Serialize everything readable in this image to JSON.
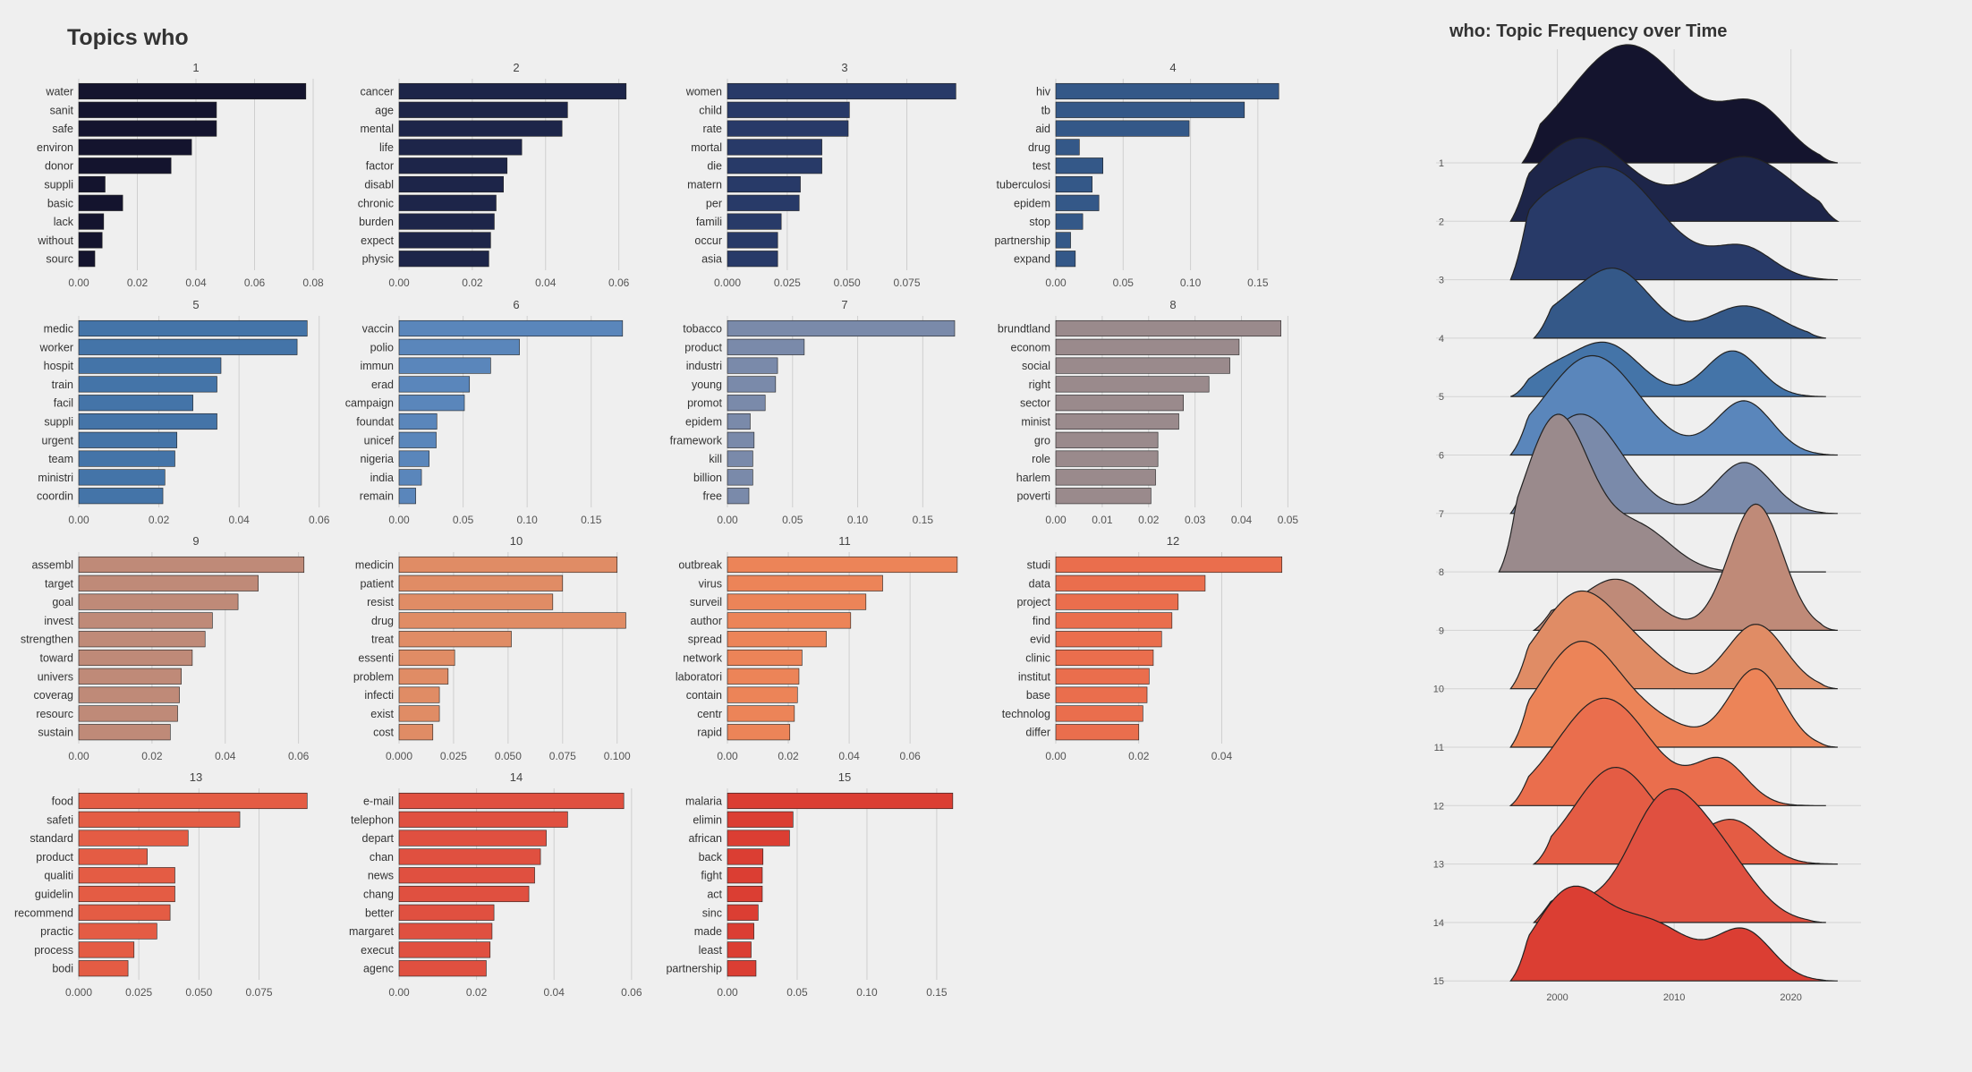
{
  "page": {
    "title": "Topics who",
    "ridge_title": "who: Topic Frequency over Time"
  },
  "chart_data": [
    {
      "type": "bar",
      "orientation": "horizontal",
      "grid": "4x4 facets (15 used)",
      "title": "Topics who",
      "facets": [
        {
          "title": "1",
          "color": "#14142e",
          "ticks": [
            0,
            0.02,
            0.04,
            0.06,
            0.08
          ],
          "tick_labels": [
            "0.00",
            "0.02",
            "0.04",
            "0.06",
            "0.08"
          ],
          "xlim": [
            0,
            0.08
          ],
          "terms": [
            "water",
            "sanit",
            "safe",
            "environ",
            "donor",
            "suppli",
            "basic",
            "lack",
            "without",
            "sourc"
          ],
          "values": [
            0.0775,
            0.047,
            0.047,
            0.0385,
            0.0315,
            0.009,
            0.015,
            0.0085,
            0.008,
            0.0055
          ]
        },
        {
          "title": "2",
          "color": "#1d2549",
          "ticks": [
            0,
            0.02,
            0.04,
            0.06
          ],
          "tick_labels": [
            "0.00",
            "0.02",
            "0.04",
            "0.06"
          ],
          "xlim": [
            0,
            0.064
          ],
          "terms": [
            "cancer",
            "age",
            "mental",
            "life",
            "factor",
            "disabl",
            "chronic",
            "burden",
            "expect",
            "physic"
          ],
          "values": [
            0.062,
            0.046,
            0.0445,
            0.0335,
            0.0295,
            0.0285,
            0.0265,
            0.026,
            0.025,
            0.0245
          ]
        },
        {
          "title": "3",
          "color": "#283a68",
          "ticks": [
            0,
            0.025,
            0.05,
            0.075
          ],
          "tick_labels": [
            "0.000",
            "0.025",
            "0.050",
            "0.075"
          ],
          "xlim": [
            0,
            0.098
          ],
          "terms": [
            "women",
            "child",
            "rate",
            "mortal",
            "die",
            "matern",
            "per",
            "famili",
            "occur",
            "asia"
          ],
          "values": [
            0.0955,
            0.051,
            0.0505,
            0.0395,
            0.0395,
            0.0305,
            0.03,
            0.0225,
            0.021,
            0.021
          ]
        },
        {
          "title": "4",
          "color": "#345888",
          "ticks": [
            0,
            0.05,
            0.1,
            0.15
          ],
          "tick_labels": [
            "0.00",
            "0.05",
            "0.10",
            "0.15"
          ],
          "xlim": [
            0,
            0.174
          ],
          "terms": [
            "hiv",
            "tb",
            "aid",
            "drug",
            "test",
            "tuberculosi",
            "epidem",
            "stop",
            "partnership",
            "expand"
          ],
          "values": [
            0.1655,
            0.14,
            0.099,
            0.0175,
            0.035,
            0.027,
            0.032,
            0.02,
            0.011,
            0.0145
          ]
        },
        {
          "title": "5",
          "color": "#4474a8",
          "ticks": [
            0,
            0.02,
            0.04,
            0.06
          ],
          "tick_labels": [
            "0.00",
            "0.02",
            "0.04",
            "0.06"
          ],
          "xlim": [
            0,
            0.0585
          ],
          "terms": [
            "medic",
            "worker",
            "hospit",
            "train",
            "facil",
            "suppli",
            "urgent",
            "team",
            "ministri",
            "coordin"
          ],
          "values": [
            0.057,
            0.0545,
            0.0355,
            0.0345,
            0.0285,
            0.0345,
            0.0245,
            0.024,
            0.0215,
            0.021
          ]
        },
        {
          "title": "6",
          "color": "#5a86bb",
          "ticks": [
            0,
            0.05,
            0.1,
            0.15
          ],
          "tick_labels": [
            "0.00",
            "0.05",
            "0.10",
            "0.15"
          ],
          "xlim": [
            0,
            0.183
          ],
          "terms": [
            "vaccin",
            "polio",
            "immun",
            "erad",
            "campaign",
            "foundat",
            "unicef",
            "nigeria",
            "india",
            "remain"
          ],
          "values": [
            0.1745,
            0.094,
            0.0715,
            0.055,
            0.051,
            0.0295,
            0.029,
            0.0235,
            0.0175,
            0.013
          ]
        },
        {
          "title": "7",
          "color": "#7a8aaa",
          "ticks": [
            0,
            0.05,
            0.1,
            0.15
          ],
          "tick_labels": [
            "0.00",
            "0.05",
            "0.10",
            "0.15"
          ],
          "xlim": [
            0,
            0.18
          ],
          "terms": [
            "tobacco",
            "product",
            "industri",
            "young",
            "promot",
            "epidem",
            "framework",
            "kill",
            "billion",
            "free"
          ],
          "values": [
            0.1745,
            0.059,
            0.0385,
            0.037,
            0.029,
            0.0175,
            0.0205,
            0.0195,
            0.0195,
            0.0165
          ]
        },
        {
          "title": "8",
          "color": "#9a8a8c",
          "ticks": [
            0,
            0.01,
            0.02,
            0.03,
            0.04,
            0.05
          ],
          "tick_labels": [
            "0.00",
            "0.01",
            "0.02",
            "0.03",
            "0.04",
            "0.05"
          ],
          "xlim": [
            0,
            0.0505
          ],
          "terms": [
            "brundtland",
            "econom",
            "social",
            "right",
            "sector",
            "minist",
            "gro",
            "role",
            "harlem",
            "poverti"
          ],
          "values": [
            0.0485,
            0.0395,
            0.0375,
            0.033,
            0.0275,
            0.0265,
            0.022,
            0.022,
            0.0215,
            0.0205
          ]
        },
        {
          "title": "9",
          "color": "#bf8a78",
          "ticks": [
            0,
            0.02,
            0.04,
            0.06
          ],
          "tick_labels": [
            "0.00",
            "0.02",
            "0.04",
            "0.06"
          ],
          "xlim": [
            0,
            0.064
          ],
          "terms": [
            "assembl",
            "target",
            "goal",
            "invest",
            "strengthen",
            "toward",
            "univers",
            "coverag",
            "resourc",
            "sustain"
          ],
          "values": [
            0.0615,
            0.049,
            0.0435,
            0.0365,
            0.0345,
            0.031,
            0.028,
            0.0275,
            0.027,
            0.025
          ]
        },
        {
          "title": "10",
          "color": "#e08c65",
          "ticks": [
            0,
            0.025,
            0.05,
            0.075,
            0.1
          ],
          "tick_labels": [
            "0.000",
            "0.025",
            "0.050",
            "0.075",
            "0.100"
          ],
          "xlim": [
            0,
            0.1075
          ],
          "terms": [
            "medicin",
            "patient",
            "resist",
            "drug",
            "treat",
            "essenti",
            "problem",
            "infecti",
            "exist",
            "cost"
          ],
          "values": [
            0.1,
            0.075,
            0.0705,
            0.104,
            0.0515,
            0.0255,
            0.0225,
            0.0185,
            0.0185,
            0.0155
          ]
        },
        {
          "title": "11",
          "color": "#ec8458",
          "ticks": [
            0,
            0.02,
            0.04,
            0.06
          ],
          "tick_labels": [
            "0.00",
            "0.02",
            "0.04",
            "0.06"
          ],
          "xlim": [
            0,
            0.077
          ],
          "terms": [
            "outbreak",
            "virus",
            "surveil",
            "author",
            "spread",
            "network",
            "laboratori",
            "contain",
            "centr",
            "rapid"
          ],
          "values": [
            0.0755,
            0.051,
            0.0455,
            0.0405,
            0.0325,
            0.0245,
            0.0235,
            0.023,
            0.022,
            0.0205
          ]
        },
        {
          "title": "12",
          "color": "#ea6e4d",
          "ticks": [
            0,
            0.02,
            0.04
          ],
          "tick_labels": [
            "0.00",
            "0.02",
            "0.04"
          ],
          "xlim": [
            0,
            0.0565
          ],
          "terms": [
            "studi",
            "data",
            "project",
            "find",
            "evid",
            "clinic",
            "institut",
            "base",
            "technolog",
            "differ"
          ],
          "values": [
            0.0545,
            0.036,
            0.0295,
            0.028,
            0.0255,
            0.0235,
            0.0225,
            0.022,
            0.021,
            0.02
          ]
        },
        {
          "title": "13",
          "color": "#e45c44",
          "ticks": [
            0,
            0.025,
            0.05,
            0.075
          ],
          "tick_labels": [
            "0.000",
            "0.025",
            "0.050",
            "0.075"
          ],
          "xlim": [
            0,
            0.0975
          ],
          "terms": [
            "food",
            "safeti",
            "standard",
            "product",
            "qualiti",
            "guidelin",
            "recommend",
            "practic",
            "process",
            "bodi"
          ],
          "values": [
            0.095,
            0.067,
            0.0455,
            0.0285,
            0.04,
            0.04,
            0.038,
            0.0325,
            0.023,
            0.0205
          ]
        },
        {
          "title": "14",
          "color": "#e05040",
          "ticks": [
            0,
            0.02,
            0.04,
            0.06
          ],
          "tick_labels": [
            "0.00",
            "0.02",
            "0.04",
            "0.06"
          ],
          "xlim": [
            0,
            0.0605
          ],
          "terms": [
            "e-mail",
            "telephon",
            "depart",
            "chan",
            "news",
            "chang",
            "better",
            "margaret",
            "execut",
            "agenc"
          ],
          "values": [
            0.058,
            0.0435,
            0.038,
            0.0365,
            0.035,
            0.0335,
            0.0245,
            0.024,
            0.0235,
            0.0225
          ]
        },
        {
          "title": "15",
          "color": "#db3e33",
          "ticks": [
            0,
            0.05,
            0.1,
            0.15
          ],
          "tick_labels": [
            "0.00",
            "0.05",
            "0.10",
            "0.15"
          ],
          "xlim": [
            0,
            0.168
          ],
          "terms": [
            "malaria",
            "elimin",
            "african",
            "back",
            "fight",
            "act",
            "sinc",
            "made",
            "least",
            "partnership"
          ],
          "values": [
            0.1615,
            0.047,
            0.0445,
            0.0255,
            0.025,
            0.025,
            0.022,
            0.019,
            0.017,
            0.0205
          ]
        }
      ]
    },
    {
      "type": "area",
      "subtype": "ridgeline",
      "title": "who: Topic Frequency over Time",
      "x_ticks": [
        2000,
        2010,
        2020
      ],
      "xlim": [
        1990,
        2026
      ],
      "y_labels": [
        "1",
        "2",
        "3",
        "4",
        "5",
        "6",
        "7",
        "8",
        "9",
        "10",
        "11",
        "12",
        "13",
        "14",
        "15"
      ],
      "grid": true,
      "series": [
        {
          "label": "1",
          "color": "#14142e",
          "range": [
            1997,
            2024
          ],
          "peaks": [
            [
              2006,
              2.2,
              5.0
            ],
            [
              2017,
              0.95,
              2.8
            ]
          ]
        },
        {
          "label": "2",
          "color": "#1d2549",
          "range": [
            1996,
            2024
          ],
          "peaks": [
            [
              2002,
              1.55,
              4.2
            ],
            [
              2016,
              1.2,
              4.2
            ]
          ]
        },
        {
          "label": "3",
          "color": "#283a68",
          "range": [
            1996,
            2024
          ],
          "peaks": [
            [
              2004,
              2.1,
              4.8
            ],
            [
              2016,
              0.55,
              2.5
            ],
            [
              1998,
              0.45,
              2.0
            ]
          ]
        },
        {
          "label": "4",
          "color": "#345888",
          "range": [
            1998,
            2023
          ],
          "peaks": [
            [
              2005,
              1.25,
              3.0
            ],
            [
              2016,
              0.6,
              3.0
            ],
            [
              2000,
              0.35,
              2.5
            ]
          ]
        },
        {
          "label": "5",
          "color": "#4474a8",
          "range": [
            1996,
            2023
          ],
          "peaks": [
            [
              2004,
              1.0,
              3.0
            ],
            [
              2015,
              0.85,
              2.3
            ],
            [
              1999,
              0.3,
              2.0
            ]
          ]
        },
        {
          "label": "6",
          "color": "#5a86bb",
          "range": [
            1996,
            2024
          ],
          "peaks": [
            [
              2003,
              1.85,
              4.0
            ],
            [
              2016,
              1.0,
              2.4
            ]
          ]
        },
        {
          "label": "7",
          "color": "#7a8aaa",
          "range": [
            1996,
            2024
          ],
          "peaks": [
            [
              2002,
              1.85,
              3.5
            ],
            [
              2016,
              0.95,
              2.4
            ]
          ]
        },
        {
          "label": "8",
          "color": "#9a8a8c",
          "range": [
            1995,
            2023
          ],
          "peaks": [
            [
              2000,
              2.9,
              2.8
            ],
            [
              2007,
              0.8,
              2.8
            ]
          ]
        },
        {
          "label": "9",
          "color": "#bf8a78",
          "range": [
            1998,
            2024
          ],
          "peaks": [
            [
              2005,
              0.95,
              3.0
            ],
            [
              2017,
              2.35,
              2.3
            ],
            [
              1999,
              0.2,
              2.0
            ]
          ]
        },
        {
          "label": "10",
          "color": "#e08c65",
          "range": [
            1996,
            2024
          ],
          "peaks": [
            [
              2002,
              1.8,
              3.5
            ],
            [
              2017,
              1.2,
              2.5
            ],
            [
              2008,
              0.35,
              2.5
            ]
          ]
        },
        {
          "label": "11",
          "color": "#ec8458",
          "range": [
            1996,
            2024
          ],
          "peaks": [
            [
              2002,
              1.95,
              3.5
            ],
            [
              2017,
              1.45,
              2.3
            ],
            [
              2009,
              0.35,
              3.0
            ]
          ]
        },
        {
          "label": "12",
          "color": "#ea6e4d",
          "range": [
            1996,
            2023
          ],
          "peaks": [
            [
              2004,
              2.0,
              4.0
            ],
            [
              2014,
              0.8,
              2.2
            ]
          ]
        },
        {
          "label": "13",
          "color": "#e45c44",
          "range": [
            1998,
            2024
          ],
          "peaks": [
            [
              2005,
              1.8,
              3.5
            ],
            [
              2015,
              0.8,
              2.5
            ]
          ]
        },
        {
          "label": "14",
          "color": "#e05040",
          "range": [
            1998,
            2023
          ],
          "peaks": [
            [
              2009,
              2.15,
              3.0
            ],
            [
              2014,
              1.1,
              3.0
            ],
            [
              2000,
              0.4,
              3.0
            ]
          ]
        },
        {
          "label": "15",
          "color": "#db3e33",
          "range": [
            1996,
            2024
          ],
          "peaks": [
            [
              2001,
              1.6,
              3.0
            ],
            [
              2008,
              1.05,
              3.5
            ],
            [
              2016,
              0.9,
              2.4
            ]
          ]
        }
      ]
    }
  ]
}
